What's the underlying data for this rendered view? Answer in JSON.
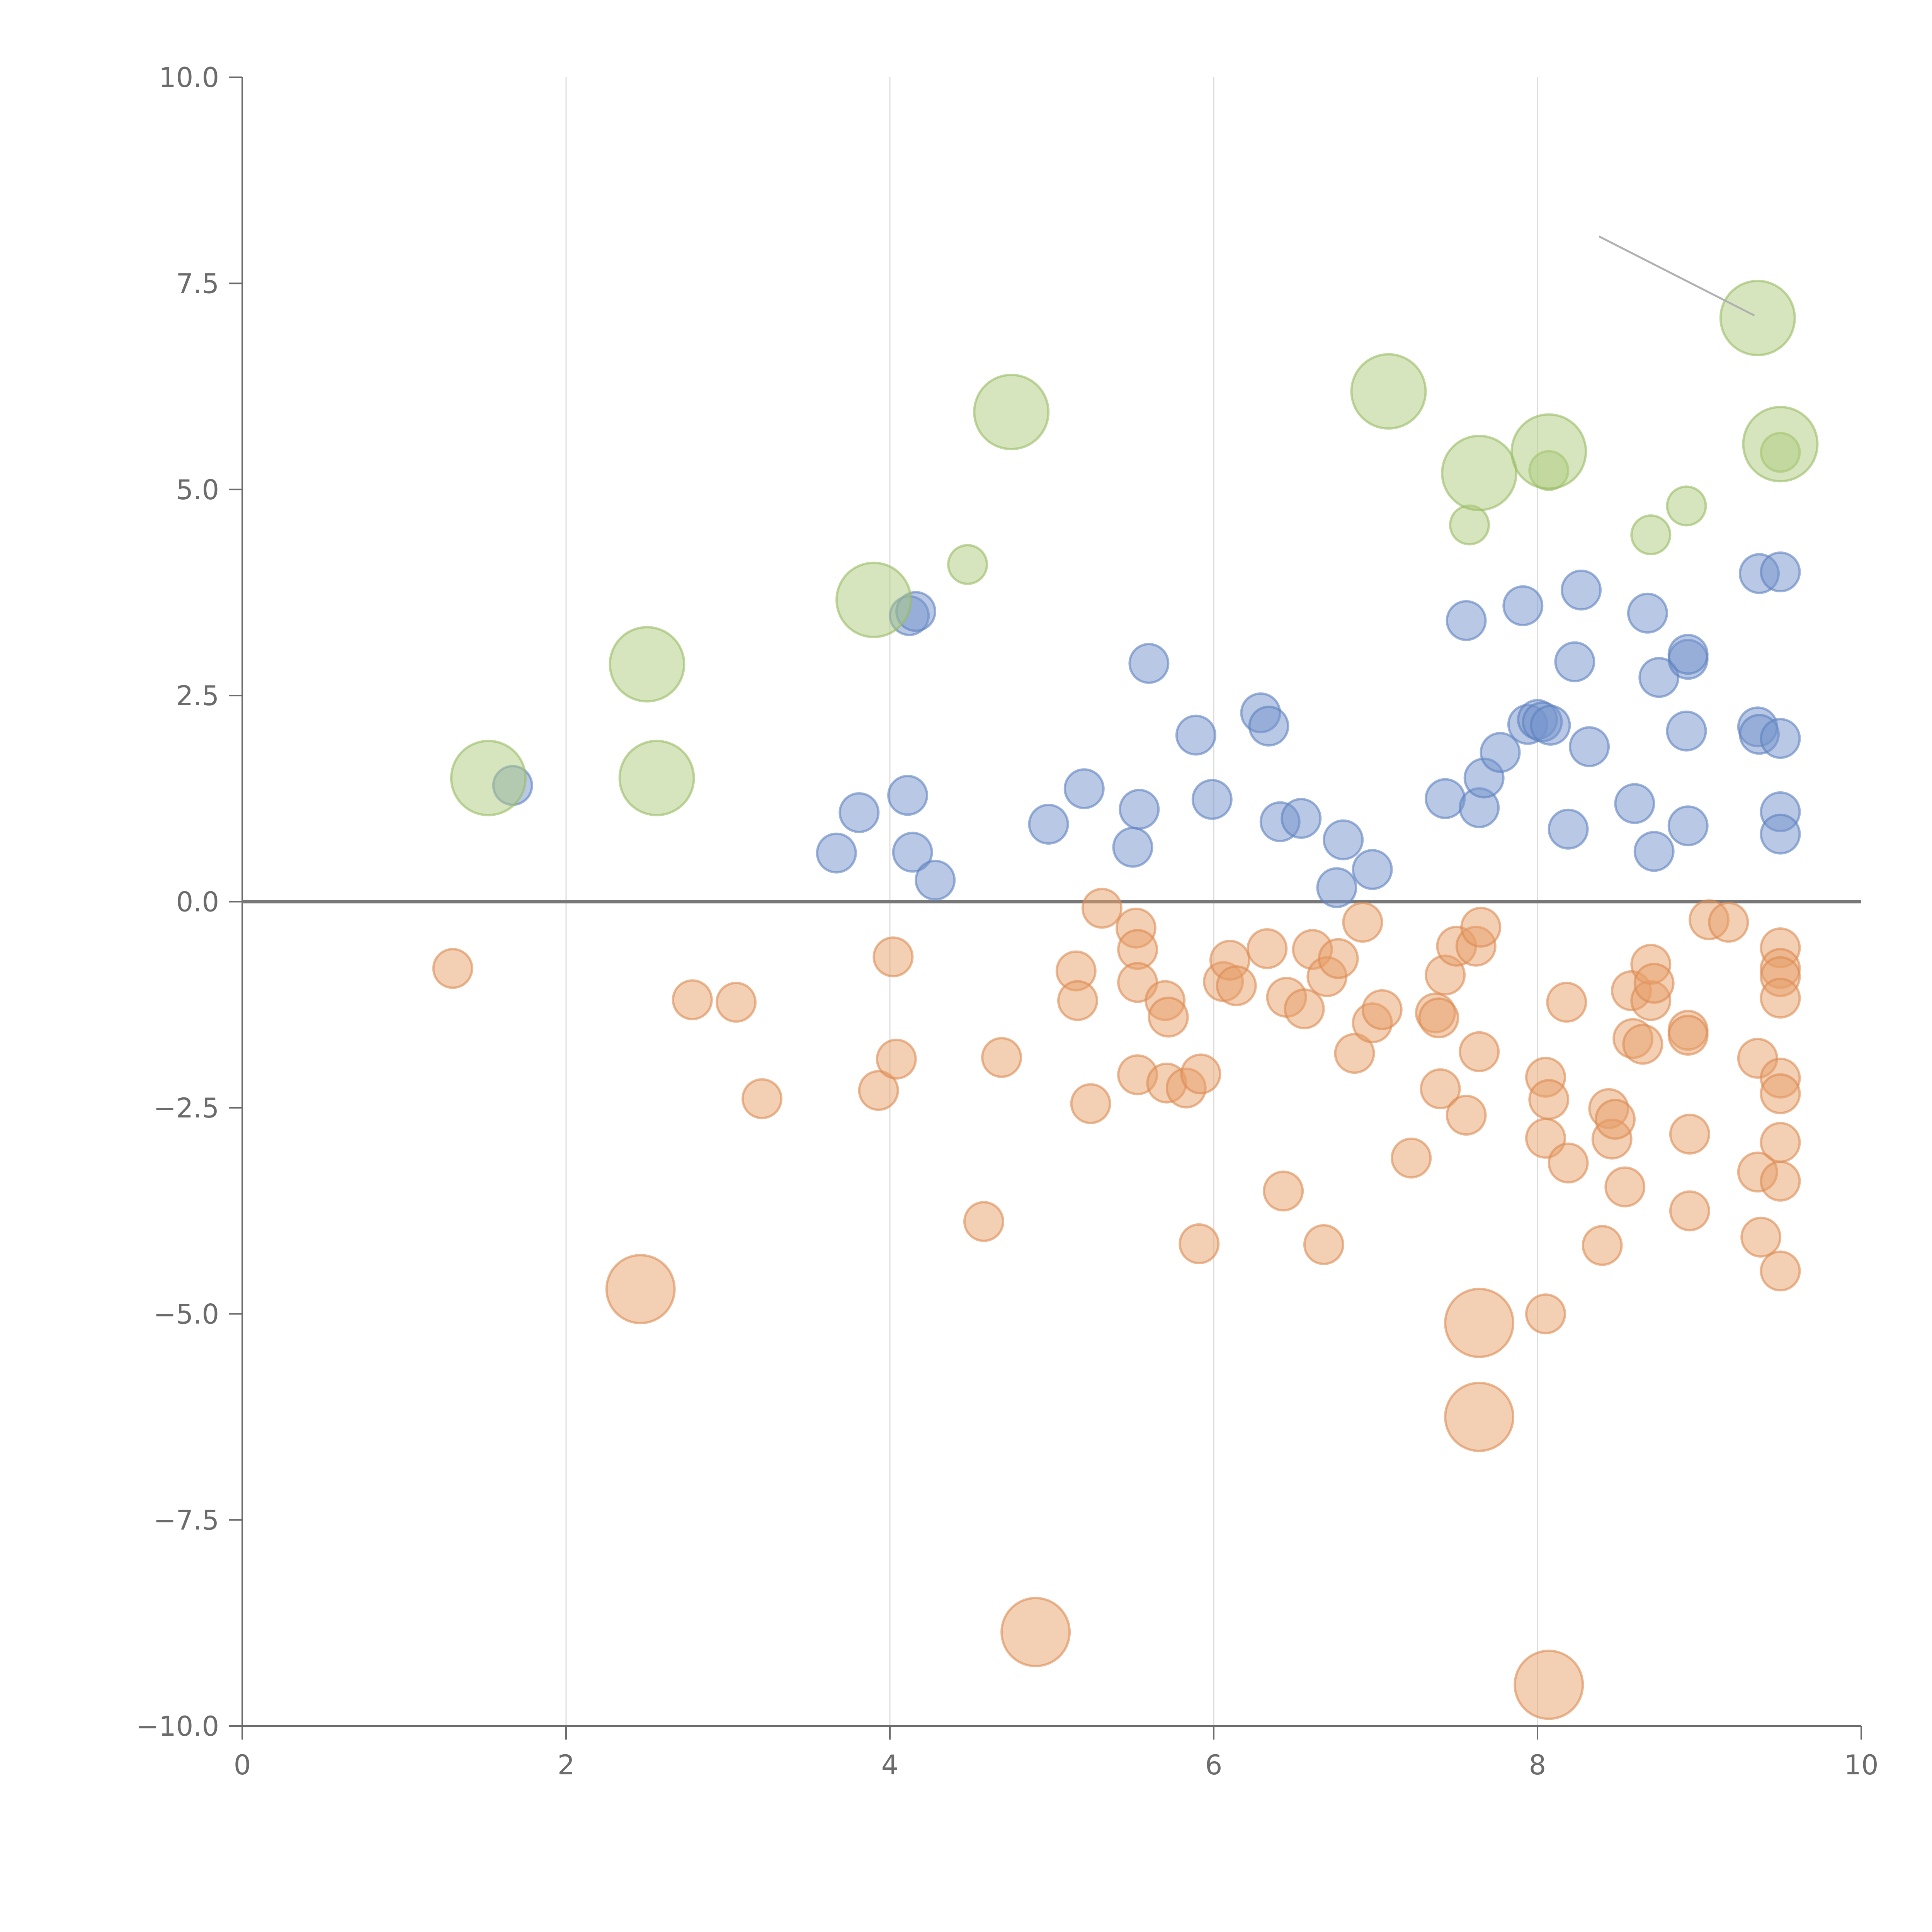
{
  "chart_data": {
    "type": "scatter",
    "xlim": [
      0,
      10
    ],
    "ylim": [
      -10,
      10
    ],
    "grid": "vertical-only",
    "x_ticks": [
      "0",
      "2",
      "4",
      "6",
      "8",
      "10"
    ],
    "y_ticks": [
      "10.0",
      "7.5",
      "5.0",
      "2.5",
      "0.0",
      "−2.5",
      "−5.0",
      "−7.5",
      "−10.0"
    ],
    "reference_line_y": 0,
    "colors": {
      "blue": "#7394cb",
      "orange": "#e8a06a",
      "green": "#aecb7e"
    },
    "series": [
      {
        "color": "blue",
        "size": "small",
        "points": [
          [
            1.67,
            1.41
          ],
          [
            3.67,
            0.59
          ],
          [
            3.81,
            1.08
          ],
          [
            4.11,
            1.29
          ],
          [
            4.12,
            3.47
          ],
          [
            4.16,
            3.52
          ],
          [
            4.14,
            0.6
          ],
          [
            4.28,
            0.26
          ],
          [
            4.98,
            0.94
          ],
          [
            5.2,
            1.37
          ],
          [
            5.5,
            0.66
          ],
          [
            5.54,
            1.12
          ],
          [
            5.6,
            2.89
          ],
          [
            5.89,
            2.02
          ],
          [
            5.99,
            1.24
          ],
          [
            6.29,
            2.29
          ],
          [
            6.34,
            2.13
          ],
          [
            6.41,
            0.97
          ],
          [
            6.54,
            1.01
          ],
          [
            6.76,
            0.17
          ],
          [
            6.8,
            0.75
          ],
          [
            6.98,
            0.39
          ],
          [
            7.43,
            1.25
          ],
          [
            7.56,
            3.41
          ],
          [
            7.64,
            1.14
          ],
          [
            7.67,
            1.5
          ],
          [
            7.77,
            1.81
          ],
          [
            7.91,
            3.59
          ],
          [
            7.94,
            2.15
          ],
          [
            8.0,
            2.21
          ],
          [
            8.03,
            2.18
          ],
          [
            8.08,
            2.14
          ],
          [
            8.19,
            0.88
          ],
          [
            8.23,
            2.91
          ],
          [
            8.27,
            3.78
          ],
          [
            8.32,
            1.88
          ],
          [
            8.6,
            1.19
          ],
          [
            8.68,
            3.5
          ],
          [
            8.72,
            0.61
          ],
          [
            8.75,
            2.72
          ],
          [
            8.92,
            2.07
          ],
          [
            8.93,
            0.92
          ],
          [
            8.93,
            2.94
          ],
          [
            8.93,
            3.0
          ],
          [
            9.36,
            2.12
          ],
          [
            9.37,
            2.03
          ],
          [
            9.37,
            3.98
          ],
          [
            9.5,
            1.98
          ],
          [
            9.5,
            1.09
          ],
          [
            9.5,
            0.82
          ],
          [
            9.5,
            4.0
          ]
        ]
      },
      {
        "color": "orange",
        "size": "small",
        "points": [
          [
            1.3,
            -0.81
          ],
          [
            2.78,
            -1.19
          ],
          [
            3.05,
            -1.22
          ],
          [
            3.21,
            -2.39
          ],
          [
            3.93,
            -2.29
          ],
          [
            4.02,
            -0.67
          ],
          [
            4.04,
            -1.91
          ],
          [
            4.58,
            -3.88
          ],
          [
            4.69,
            -1.89
          ],
          [
            5.15,
            -0.84
          ],
          [
            5.16,
            -1.2
          ],
          [
            5.24,
            -2.45
          ],
          [
            5.31,
            -0.08
          ],
          [
            5.52,
            -0.32
          ],
          [
            5.53,
            -0.58
          ],
          [
            5.53,
            -0.98
          ],
          [
            5.53,
            -2.1
          ],
          [
            5.7,
            -1.2
          ],
          [
            5.71,
            -2.2
          ],
          [
            5.72,
            -1.4
          ],
          [
            5.83,
            -2.26
          ],
          [
            5.91,
            -4.15
          ],
          [
            5.92,
            -2.09
          ],
          [
            6.06,
            -0.97
          ],
          [
            6.1,
            -0.71
          ],
          [
            6.14,
            -1.02
          ],
          [
            6.33,
            -0.57
          ],
          [
            6.43,
            -3.51
          ],
          [
            6.45,
            -1.16
          ],
          [
            6.56,
            -1.3
          ],
          [
            6.61,
            -0.58
          ],
          [
            6.68,
            -4.16
          ],
          [
            6.7,
            -0.91
          ],
          [
            6.77,
            -0.69
          ],
          [
            6.87,
            -1.84
          ],
          [
            6.92,
            -0.25
          ],
          [
            6.98,
            -1.47
          ],
          [
            7.04,
            -1.31
          ],
          [
            7.22,
            -3.11
          ],
          [
            7.37,
            -1.35
          ],
          [
            7.39,
            -1.41
          ],
          [
            7.4,
            -2.27
          ],
          [
            7.43,
            -0.89
          ],
          [
            7.5,
            -0.54
          ],
          [
            7.56,
            -2.59
          ],
          [
            7.62,
            -0.54
          ],
          [
            7.64,
            -1.82
          ],
          [
            7.65,
            -0.31
          ],
          [
            8.05,
            -2.13
          ],
          [
            8.05,
            -2.87
          ],
          [
            8.05,
            -5.0
          ],
          [
            8.07,
            -2.4
          ],
          [
            8.18,
            -1.22
          ],
          [
            8.19,
            -3.17
          ],
          [
            8.44,
            -2.51
          ],
          [
            8.46,
            -2.88
          ],
          [
            8.48,
            -2.64
          ],
          [
            8.4,
            -4.17
          ],
          [
            8.54,
            -3.46
          ],
          [
            8.58,
            -1.08
          ],
          [
            8.59,
            -1.66
          ],
          [
            8.65,
            -1.73
          ],
          [
            8.7,
            -1.2
          ],
          [
            8.7,
            -0.76
          ],
          [
            8.72,
            -0.99
          ],
          [
            8.93,
            -1.56
          ],
          [
            8.93,
            -1.62
          ],
          [
            8.94,
            -2.82
          ],
          [
            8.94,
            -3.75
          ],
          [
            9.06,
            -0.22
          ],
          [
            9.18,
            -0.25
          ],
          [
            9.36,
            -1.9
          ],
          [
            9.36,
            -3.28
          ],
          [
            9.38,
            -4.07
          ],
          [
            9.5,
            -0.56
          ],
          [
            9.5,
            -0.81
          ],
          [
            9.5,
            -0.91
          ],
          [
            9.5,
            -1.17
          ],
          [
            9.5,
            -2.14
          ],
          [
            9.5,
            -2.33
          ],
          [
            9.5,
            -2.92
          ],
          [
            9.5,
            -3.39
          ],
          [
            9.5,
            -4.48
          ]
        ]
      },
      {
        "color": "orange",
        "size": "large",
        "points": [
          [
            2.46,
            -4.7
          ],
          [
            4.9,
            -8.86
          ],
          [
            7.64,
            -5.11
          ],
          [
            7.64,
            -6.25
          ],
          [
            8.07,
            -9.5
          ]
        ]
      },
      {
        "color": "green",
        "size": "small",
        "points": [
          [
            4.48,
            4.09
          ],
          [
            7.58,
            4.57
          ],
          [
            8.07,
            5.23
          ],
          [
            8.7,
            4.45
          ],
          [
            8.92,
            4.8
          ],
          [
            9.5,
            5.45
          ]
        ]
      },
      {
        "color": "green",
        "size": "large",
        "points": [
          [
            1.52,
            1.5
          ],
          [
            2.5,
            2.88
          ],
          [
            2.56,
            1.5
          ],
          [
            3.9,
            3.66
          ],
          [
            4.75,
            5.94
          ],
          [
            7.08,
            6.19
          ],
          [
            7.64,
            5.2
          ],
          [
            8.07,
            5.46
          ],
          [
            9.36,
            7.08
          ],
          [
            9.5,
            5.55
          ]
        ]
      }
    ],
    "annotations": [
      {
        "type": "leader-line",
        "from": [
          8.38,
          8.07
        ],
        "to": [
          9.34,
          7.11
        ]
      }
    ]
  }
}
